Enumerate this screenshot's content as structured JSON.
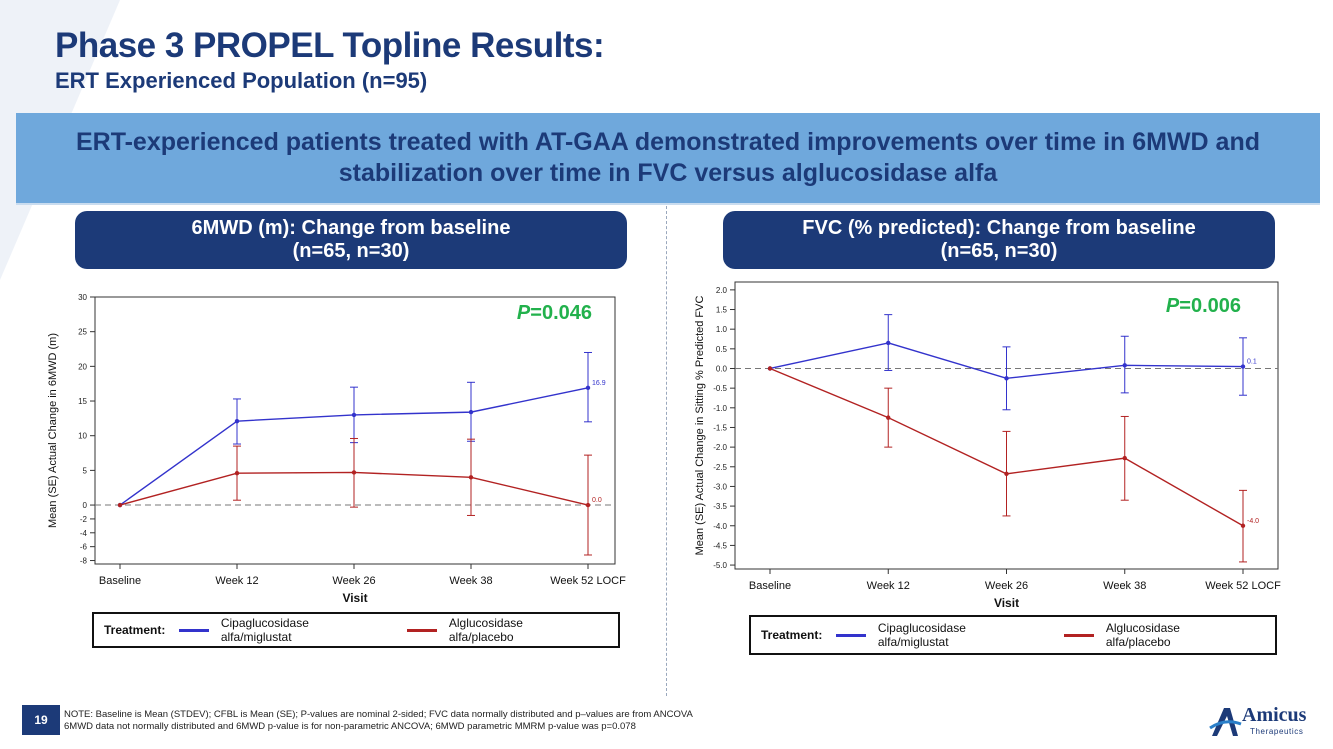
{
  "title": "Phase 3 PROPEL Topline Results:",
  "subtitle": "ERT Experienced Population (n=95)",
  "banner": "ERT-experienced patients treated with AT-GAA demonstrated improvements over time in 6MWD and stabilization over time in FVC versus alglucosidase alfa",
  "page_number": "19",
  "footnote": {
    "line1": "NOTE: Baseline is Mean (STDEV); CFBL is Mean (SE); P-values are nominal 2-sided; FVC data normally distributed and p–values are from ANCOVA",
    "line2": "6MWD data not normally distributed and 6MWD p-value is for non-parametric ANCOVA; 6MWD parametric MMRM p-value was p=0.078"
  },
  "logo": {
    "name": "Amicus",
    "sub": "Therapeutics"
  },
  "colors": {
    "navy": "#1c3a78",
    "banner": "#6fa8dc",
    "series_blue": "#3333cc",
    "series_red": "#b22222",
    "pvalue_green": "#22b14c"
  },
  "legend": {
    "label": "Treatment:",
    "items": [
      "Cipaglucosidase alfa/miglustat",
      "Alglucosidase alfa/placebo"
    ]
  },
  "chart_data": [
    {
      "type": "line",
      "header_line1": "6MWD (m): Change from baseline",
      "header_line2": "(n=65, n=30)",
      "p_prefix": "P",
      "p_value": "=0.046",
      "xlabel": "Visit",
      "ylabel": "Mean (SE) Actual Change in 6MWD (m)",
      "categories": [
        "Baseline",
        "Week 12",
        "Week 26",
        "Week 38",
        "Week 52 LOCF"
      ],
      "yticks": [
        -8,
        -6,
        -4,
        -2,
        0,
        5,
        10,
        15,
        20,
        25,
        30
      ],
      "ylim": [
        -8.5,
        30
      ],
      "series": [
        {
          "name": "Cipaglucosidase alfa/miglustat",
          "values": [
            0,
            12.1,
            13.0,
            13.4,
            16.9
          ],
          "lower": [
            0,
            8.8,
            9.0,
            9.2,
            12.0
          ],
          "upper": [
            0,
            15.3,
            17.0,
            17.7,
            22.0
          ],
          "end_label": "16.9"
        },
        {
          "name": "Alglucosidase alfa/placebo",
          "values": [
            0,
            4.6,
            4.7,
            4.0,
            0.0
          ],
          "lower": [
            0,
            0.7,
            -0.3,
            -1.5,
            -7.2
          ],
          "upper": [
            0,
            8.5,
            9.6,
            9.5,
            7.2
          ],
          "end_label": "0.0"
        }
      ]
    },
    {
      "type": "line",
      "header_line1": "FVC (% predicted): Change from baseline",
      "header_line2": "(n=65, n=30)",
      "p_prefix": "P",
      "p_value": "=0.006",
      "xlabel": "Visit",
      "ylabel": "Mean (SE) Actual Change in Sitting % Predicted FVC",
      "categories": [
        "Baseline",
        "Week 12",
        "Week 26",
        "Week 38",
        "Week 52 LOCF"
      ],
      "yticks": [
        -5.0,
        -4.5,
        -4.0,
        -3.5,
        -3.0,
        -2.5,
        -2.0,
        -1.5,
        -1.0,
        -0.5,
        0.0,
        0.5,
        1.0,
        1.5,
        2.0
      ],
      "ylim": [
        -5.1,
        2.2
      ],
      "series": [
        {
          "name": "Cipaglucosidase alfa/miglustat",
          "values": [
            0,
            0.65,
            -0.25,
            0.08,
            0.05
          ],
          "lower": [
            0,
            -0.05,
            -1.05,
            -0.62,
            -0.68
          ],
          "upper": [
            0,
            1.37,
            0.55,
            0.82,
            0.78
          ],
          "end_label": "0.1"
        },
        {
          "name": "Alglucosidase alfa/placebo",
          "values": [
            0,
            -1.25,
            -2.68,
            -2.28,
            -4.0
          ],
          "lower": [
            0,
            -2.0,
            -3.75,
            -3.35,
            -4.92
          ],
          "upper": [
            0,
            -0.5,
            -1.6,
            -1.22,
            -3.1
          ],
          "end_label": "-4.0"
        }
      ]
    }
  ]
}
